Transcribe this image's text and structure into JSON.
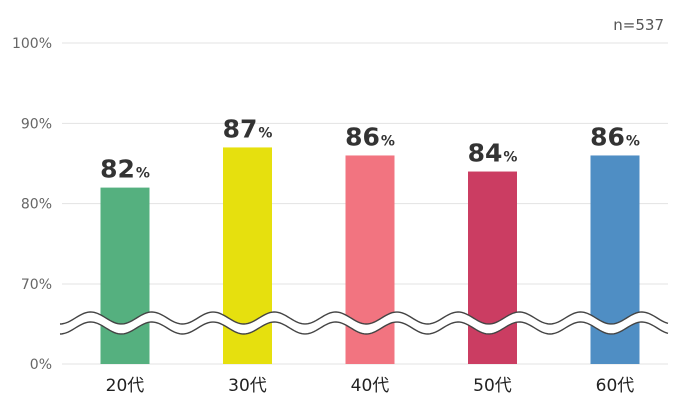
{
  "chart_data": {
    "type": "bar",
    "note": "n=537",
    "categories": [
      "20代",
      "30代",
      "40代",
      "50代",
      "60代"
    ],
    "values": [
      82,
      87,
      86,
      84,
      86
    ],
    "value_labels": [
      "82",
      "87",
      "86",
      "84",
      "86"
    ],
    "value_unit": "%",
    "colors": [
      "#55b07f",
      "#e6e00e",
      "#f27480",
      "#cb3d62",
      "#4f8ec4"
    ],
    "ylim": [
      0,
      100
    ],
    "axis_break": [
      0,
      70
    ],
    "y_ticks": [
      {
        "value": 100,
        "label": "100%"
      },
      {
        "value": 90,
        "label": "90%"
      },
      {
        "value": 80,
        "label": "80%"
      },
      {
        "value": 70,
        "label": "70%"
      },
      {
        "value": 0,
        "label": "0%"
      }
    ],
    "grid": true,
    "legend": "none"
  }
}
